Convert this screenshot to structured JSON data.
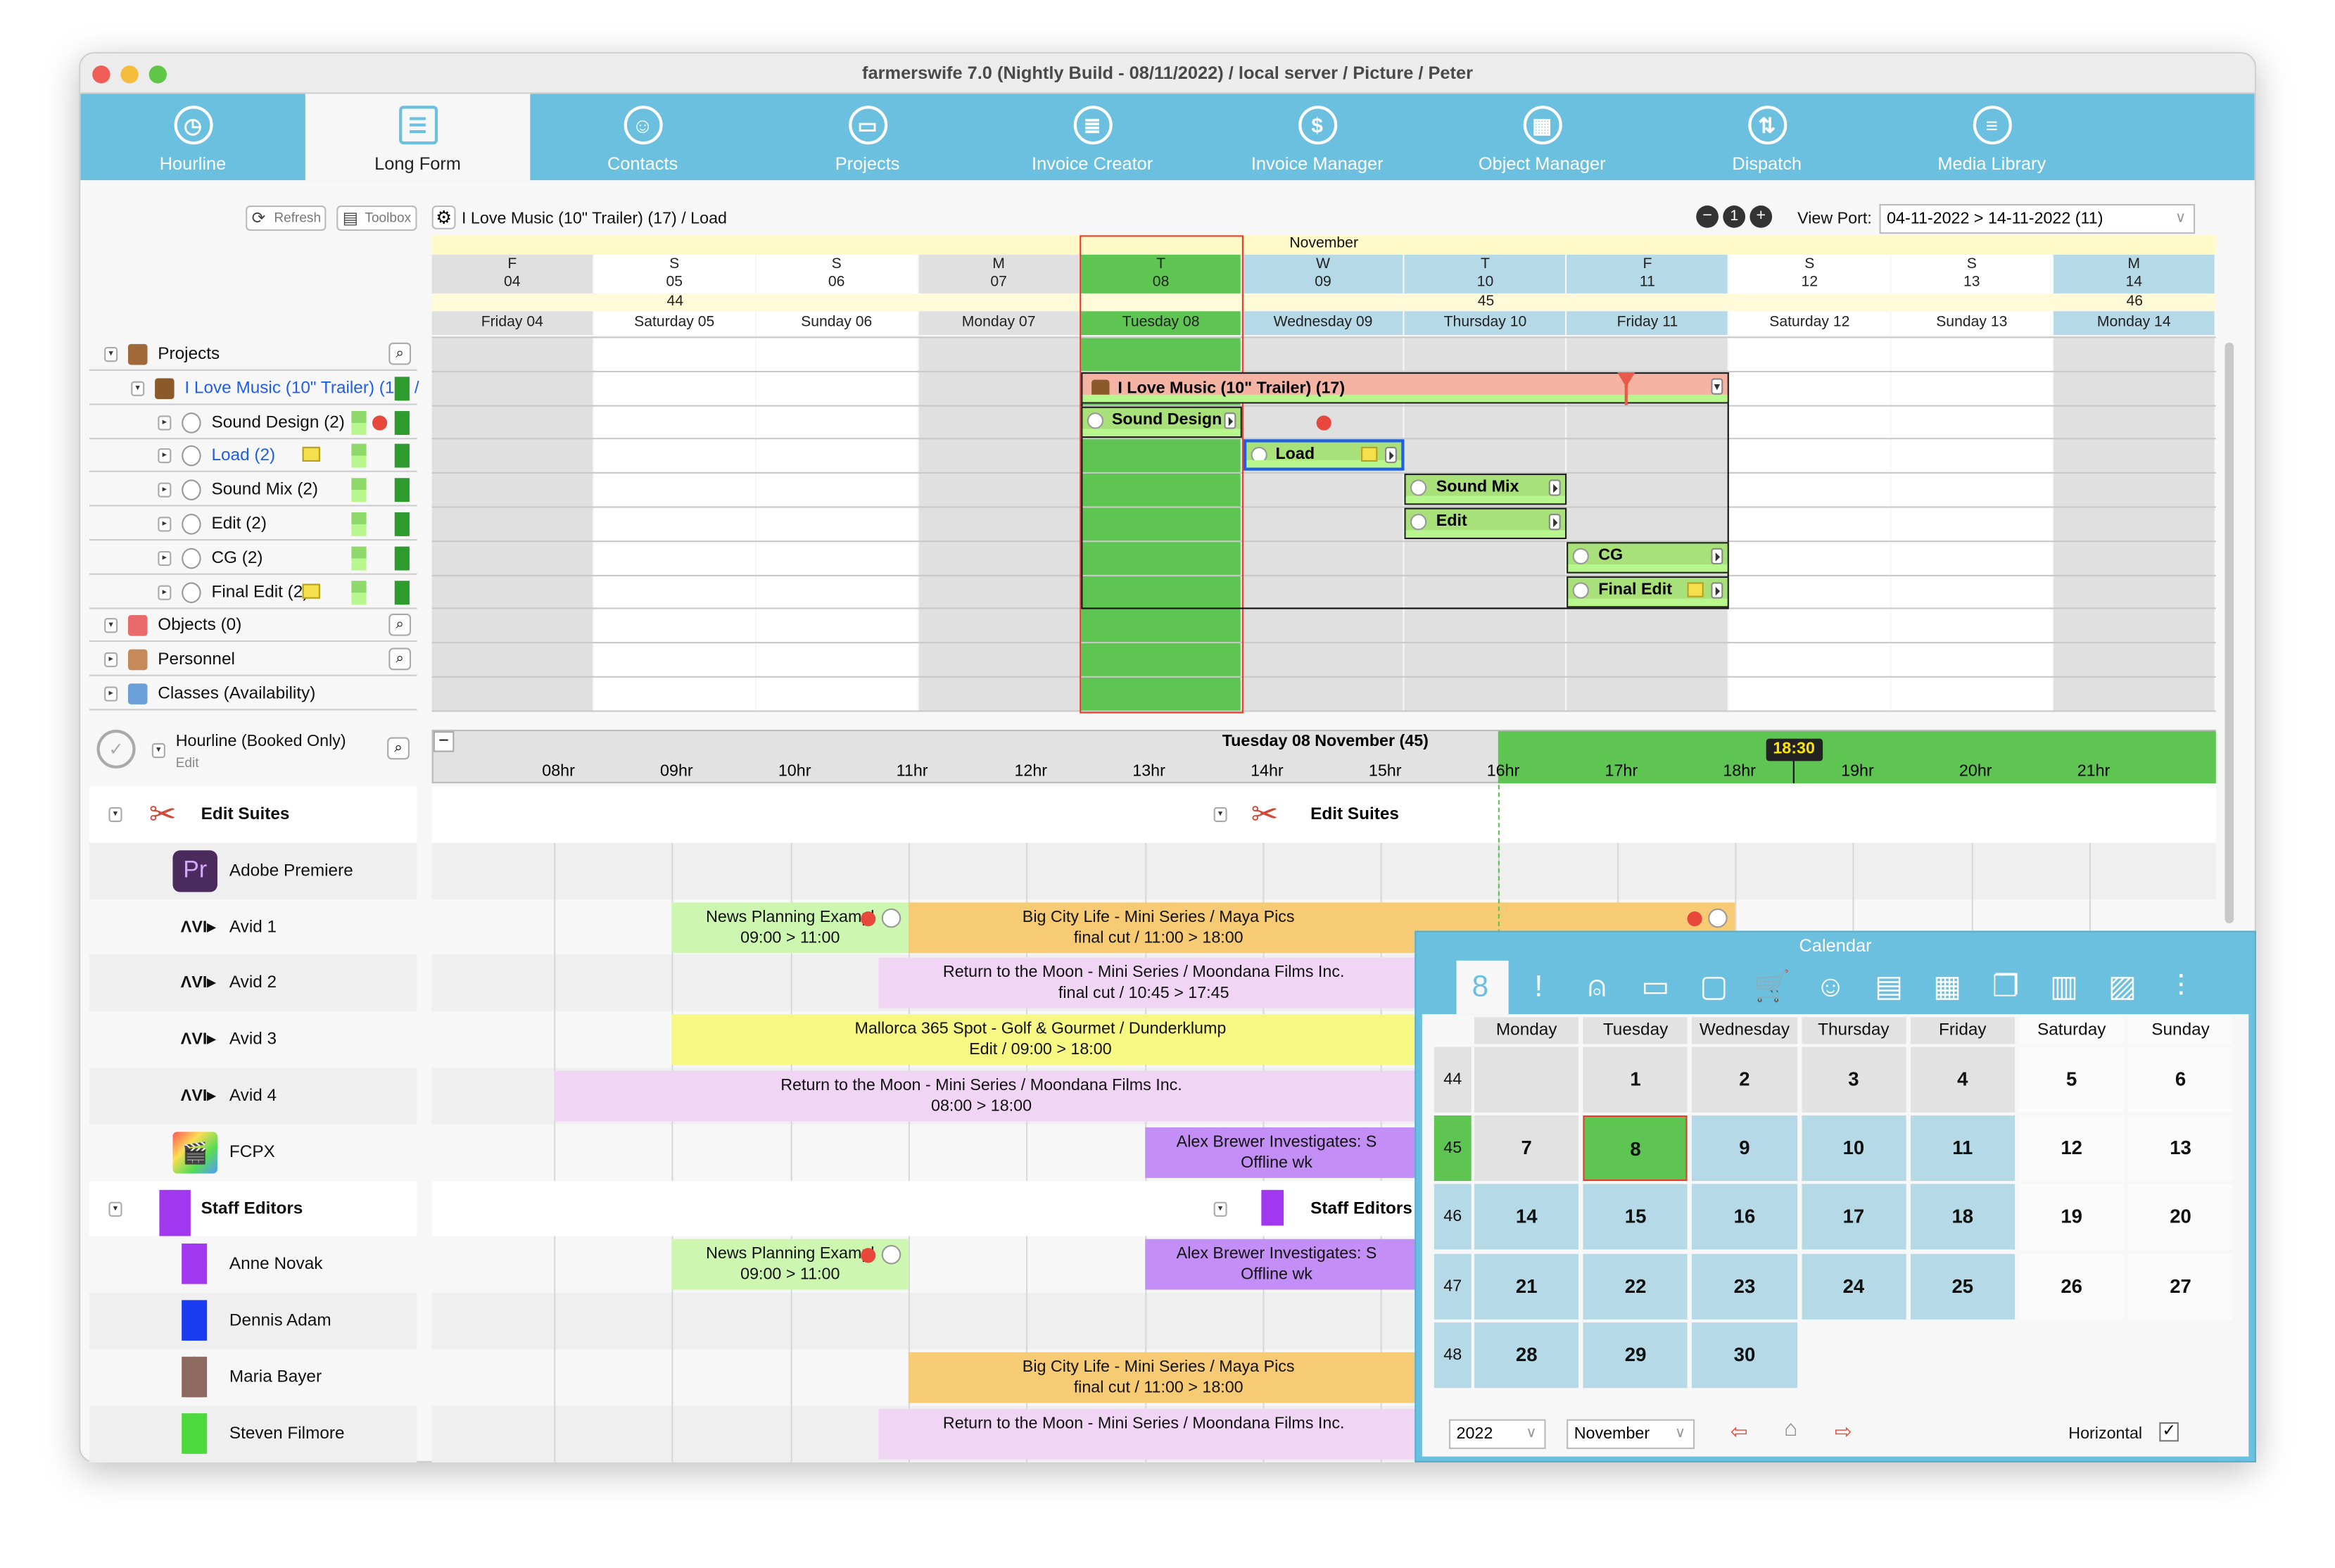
{
  "window": {
    "title": "farmerswife 7.0  (Nightly Build - 08/11/2022) / local server / Picture / Peter"
  },
  "nav": {
    "tabs": [
      {
        "label": "Hourline",
        "icon": "clock-icon",
        "glyph": "◷"
      },
      {
        "label": "Long Form",
        "icon": "long-form-icon",
        "glyph": "☰",
        "active": true
      },
      {
        "label": "Contacts",
        "icon": "contacts-icon",
        "glyph": "☺"
      },
      {
        "label": "Projects",
        "icon": "briefcase-icon",
        "glyph": "▭"
      },
      {
        "label": "Invoice Creator",
        "icon": "invoice-icon",
        "glyph": "≣"
      },
      {
        "label": "Invoice Manager",
        "icon": "bank-icon",
        "glyph": "$"
      },
      {
        "label": "Object Manager",
        "icon": "objects-icon",
        "glyph": "▦"
      },
      {
        "label": "Dispatch",
        "icon": "dispatch-icon",
        "glyph": "⇅"
      },
      {
        "label": "Media Library",
        "icon": "media-library-icon",
        "glyph": "≡"
      }
    ]
  },
  "toolbar": {
    "refresh_label": "Refresh",
    "toolbox_label": "Toolbox",
    "breadcrumb": "I Love Music (10\" Trailer) (17) /  Load",
    "viewport_label": "View Port:",
    "viewport_value": "04-11-2022 > 14-11-2022 (11)"
  },
  "longform": {
    "month": "November",
    "days": [
      {
        "letter": "F",
        "num": "04",
        "name": "Friday 04",
        "kind": "weekday"
      },
      {
        "letter": "S",
        "num": "05",
        "name": "Saturday 05",
        "kind": "weekend"
      },
      {
        "letter": "S",
        "num": "06",
        "name": "Sunday 06",
        "kind": "weekend"
      },
      {
        "letter": "M",
        "num": "07",
        "name": "Monday 07",
        "kind": "weekday"
      },
      {
        "letter": "T",
        "num": "08",
        "name": "Tuesday 08",
        "kind": "today"
      },
      {
        "letter": "W",
        "num": "09",
        "name": "Wednesday 09",
        "kind": "week"
      },
      {
        "letter": "T",
        "num": "10",
        "name": "Thursday 10",
        "kind": "week"
      },
      {
        "letter": "F",
        "num": "11",
        "name": "Friday 11",
        "kind": "week"
      },
      {
        "letter": "S",
        "num": "12",
        "name": "Saturday 12",
        "kind": "weekend"
      },
      {
        "letter": "S",
        "num": "13",
        "name": "Sunday 13",
        "kind": "weekend"
      },
      {
        "letter": "M",
        "num": "14",
        "name": "Monday 14",
        "kind": "week"
      }
    ],
    "weeks": [
      {
        "label": "44",
        "from": 0,
        "to": 3
      },
      {
        "label": "45",
        "from": 3,
        "to": 10
      },
      {
        "label": "46",
        "from": 10,
        "to": 11
      }
    ],
    "tree": [
      {
        "label": "Projects",
        "level": 0,
        "icon": "cabinet-icon",
        "search": true
      },
      {
        "label": "I Love Music (10\" Trailer) (17) /",
        "level": 1,
        "icon": "briefcase-icon",
        "link": true
      },
      {
        "label": "Sound Design (2)",
        "level": 2,
        "icon": "task-clock-icon",
        "dot": true
      },
      {
        "label": "Load (2)",
        "level": 2,
        "icon": "task-clock-icon",
        "link": true,
        "note": true
      },
      {
        "label": "Sound Mix (2)",
        "level": 2,
        "icon": "task-clock-icon"
      },
      {
        "label": "Edit (2)",
        "level": 2,
        "icon": "task-clock-icon"
      },
      {
        "label": "CG (2)",
        "level": 2,
        "icon": "task-clock-icon"
      },
      {
        "label": "Final Edit (2)",
        "level": 2,
        "icon": "task-clock-icon",
        "note": true
      },
      {
        "label": "Objects (0)",
        "level": 0,
        "icon": "objects-icon",
        "search": true
      },
      {
        "label": "Personnel",
        "level": 0,
        "icon": "personnel-icon",
        "search": true
      },
      {
        "label": "Classes (Availability)",
        "level": 0,
        "icon": "classes-icon"
      }
    ],
    "project_bar": {
      "label": "I Love Music (10\" Trailer) (17)",
      "from": 4,
      "to": 8
    },
    "tasks": [
      {
        "label": "Sound Design",
        "row": 2,
        "day": 4
      },
      {
        "label": "Load",
        "row": 3,
        "day": 5,
        "selected": true,
        "note": true
      },
      {
        "label": "Sound Mix",
        "row": 4,
        "day": 6
      },
      {
        "label": "Edit",
        "row": 5,
        "day": 6
      },
      {
        "label": "CG",
        "row": 6,
        "day": 7
      },
      {
        "label": "Final Edit",
        "row": 7,
        "day": 7,
        "note": true
      }
    ]
  },
  "hourline": {
    "title": "Hourline (Booked Only)",
    "subtitle": "Edit",
    "date_label": "Tuesday 08 November (45)",
    "hours": [
      "08hr",
      "09hr",
      "10hr",
      "11hr",
      "12hr",
      "13hr",
      "14hr",
      "15hr",
      "16hr",
      "17hr",
      "18hr",
      "19hr",
      "20hr",
      "21hr"
    ],
    "now_label": "18:30",
    "now_hour": 18.5,
    "resources": [
      {
        "label": "Edit Suites",
        "group": true,
        "icon": "edit-suites-icon"
      },
      {
        "label": "Adobe Premiere",
        "icon": "premiere-icon"
      },
      {
        "label": "Avid 1",
        "icon": "avid-icon"
      },
      {
        "label": "Avid 2",
        "icon": "avid-icon"
      },
      {
        "label": "Avid 3",
        "icon": "avid-icon"
      },
      {
        "label": "Avid 4",
        "icon": "avid-icon"
      },
      {
        "label": "FCPX",
        "icon": "fcpx-icon"
      },
      {
        "label": "Staff Editors",
        "group": true,
        "icon": "person-purple-icon"
      },
      {
        "label": "Anne Novak",
        "icon": "person-purple-icon",
        "color": "#a237f0"
      },
      {
        "label": "Dennis Adam",
        "icon": "person-blue-icon",
        "color": "#1a3cf0"
      },
      {
        "label": "Maria Bayer",
        "icon": "person-brown-icon",
        "color": "#8c6a60"
      },
      {
        "label": "Steven Filmore",
        "icon": "person-green-icon",
        "color": "#4cd93c"
      }
    ],
    "bookings": [
      {
        "row": 2,
        "start": 9,
        "end": 11,
        "line1": "News Planning Exampl",
        "line2": "09:00 > 11:00",
        "color": "#cdf7b0",
        "dot": true
      },
      {
        "row": 2,
        "start": 11,
        "end": 18,
        "line1": "Big City Life - Mini Series / Maya Pics",
        "line2": "final cut / 11:00 > 18:00",
        "color": "#f7cb73",
        "dot": true
      },
      {
        "row": 3,
        "start": 10.75,
        "end": 17.75,
        "line1": "Return to the Moon - Mini Series / Moondana Films Inc.",
        "line2": "final cut / 10:45 > 17:45",
        "color": "#f1d5f5"
      },
      {
        "row": 4,
        "start": 9,
        "end": 18,
        "line1": "Mallorca 365 Spot - Golf & Gourmet / Dunderklump",
        "line2": "Edit / 09:00 > 18:00",
        "color": "#f7f784"
      },
      {
        "row": 5,
        "start": 8,
        "end": 18,
        "line1": "Return to the Moon - Mini Series / Moondana Films Inc.",
        "line2": "08:00 > 18:00",
        "color": "#f1d5f5"
      },
      {
        "row": 6,
        "start": 13,
        "end": 16.5,
        "line1": "Alex Brewer Investigates: S",
        "line2": "Offline wk",
        "color": "#c38ef5"
      },
      {
        "row": 8,
        "start": 9,
        "end": 11,
        "line1": "News Planning Exampl",
        "line2": "09:00 > 11:00",
        "color": "#cdf7b0",
        "dot": true
      },
      {
        "row": 8,
        "start": 13,
        "end": 16.5,
        "line1": "Alex Brewer Investigates: S",
        "line2": "Offline wk",
        "color": "#c38ef5"
      },
      {
        "row": 10,
        "start": 11,
        "end": 18,
        "line1": "Big City Life - Mini Series / Maya Pics",
        "line2": "final cut / 11:00 > 18:00",
        "color": "#f7cb73"
      },
      {
        "row": 11,
        "start": 10.75,
        "end": 17.75,
        "line1": "Return to the Moon - Mini Series / Moondana Films Inc.",
        "line2": "",
        "color": "#f1d5f5"
      }
    ]
  },
  "calendar": {
    "title": "Calendar",
    "icons": [
      "calendar-icon",
      "alerts-icon",
      "bell-icon",
      "archive-icon",
      "briefcase-icon",
      "cart-icon",
      "contacts-icon",
      "list-icon",
      "objects-icon",
      "copy-icon",
      "trash-icon",
      "roadblock-icon",
      "sliders-icon"
    ],
    "icon_glyphs": [
      "8",
      "!",
      "⍝",
      "▭",
      "▢",
      "🛒",
      "☺",
      "▤",
      "▦",
      "❐",
      "▥",
      "▨",
      "⫶"
    ],
    "weekdays": [
      "Monday",
      "Tuesday",
      "Wednesday",
      "Thursday",
      "Friday",
      "Saturday",
      "Sunday"
    ],
    "weeks": [
      {
        "num": "44",
        "days": [
          "",
          "1",
          "2",
          "3",
          "4",
          "5",
          "6"
        ]
      },
      {
        "num": "45",
        "days": [
          "7",
          "8",
          "9",
          "10",
          "11",
          "12",
          "13"
        ]
      },
      {
        "num": "46",
        "days": [
          "14",
          "15",
          "16",
          "17",
          "18",
          "19",
          "20"
        ]
      },
      {
        "num": "47",
        "days": [
          "21",
          "22",
          "23",
          "24",
          "25",
          "26",
          "27"
        ]
      },
      {
        "num": "48",
        "days": [
          "28",
          "29",
          "30",
          "",
          "",
          "",
          ""
        ]
      }
    ],
    "today": "8",
    "year": "2022",
    "month": "November",
    "horizontal_label": "Horizontal",
    "horizontal_checked": true
  },
  "colors": {
    "nav": "#6bc0df",
    "today": "#5ec452",
    "week": "#b5d9e6",
    "weekday": "#e0e0e0",
    "project": "#f5b3a3",
    "task": "#a8e07a"
  }
}
